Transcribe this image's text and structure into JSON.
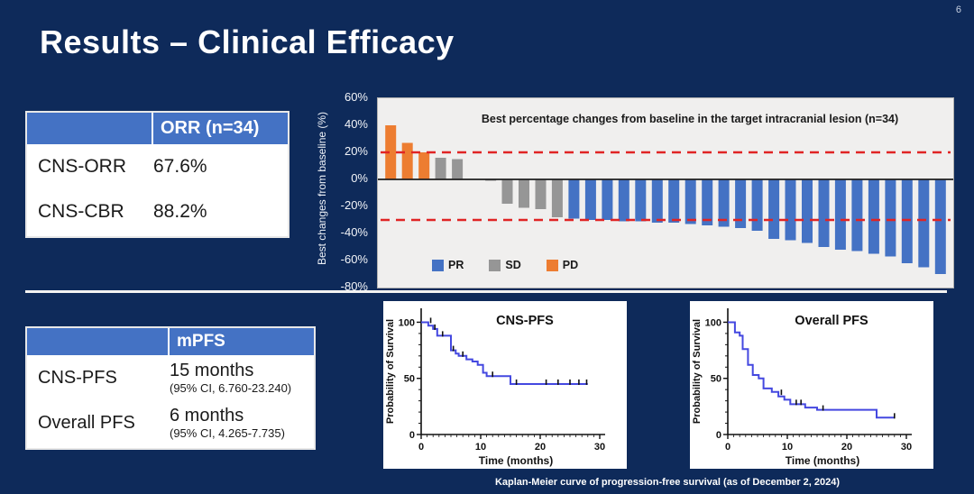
{
  "meta": {
    "page_number": "6"
  },
  "header": {
    "title": "Results – Clinical Efficacy"
  },
  "tables": {
    "orr": {
      "header_label": "ORR (n=34)",
      "rows": [
        {
          "label": "CNS-ORR",
          "value": "67.6%"
        },
        {
          "label": "CNS-CBR",
          "value": "88.2%"
        }
      ]
    },
    "mpfs": {
      "header_label": "mPFS",
      "rows": [
        {
          "label": "CNS-PFS",
          "value": "15 months",
          "ci": "(95% CI, 6.760-23.240)"
        },
        {
          "label": "Overall PFS",
          "value": "6 months",
          "ci": "(95% CI, 4.265-7.735)"
        }
      ]
    }
  },
  "caption": "Kaplan-Meier curve of progression-free survival (as of December 2, 2024)",
  "colors": {
    "background": "#0E2A5A",
    "table_header_blue": "#4472C4",
    "pr_blue": "#4472C4",
    "sd_gray": "#969696",
    "pd_orange": "#ED7D31",
    "reference_red": "#E02424",
    "km_curve_blue": "#4448E0",
    "plot_background": "#F0EFEE"
  },
  "chart_data": [
    {
      "id": "waterfall",
      "type": "bar",
      "title": "Best percentage changes from baseline in the target intracranial lesion (n=34)",
      "ylabel": "Best changes from baseline (%)",
      "ylim": [
        -80,
        60
      ],
      "yticks": [
        60,
        40,
        20,
        0,
        -20,
        -40,
        -60,
        -80
      ],
      "ytick_labels": [
        "60%",
        "40%",
        "20%",
        "0%",
        "-20%",
        "-40%",
        "-60%",
        "-80%"
      ],
      "reference_lines": [
        20,
        -30
      ],
      "grid": false,
      "legend_position": "inside-bottom-left",
      "legend": [
        {
          "label": "PR",
          "color_key": "pr_blue"
        },
        {
          "label": "SD",
          "color_key": "sd_gray"
        },
        {
          "label": "PD",
          "color_key": "pd_orange"
        }
      ],
      "values": [
        40,
        27,
        20,
        16,
        15,
        0,
        -1,
        -18,
        -21,
        -22,
        -28,
        -29,
        -30,
        -30,
        -31,
        -31,
        -32,
        -32,
        -33,
        -34,
        -35,
        -36,
        -38,
        -44,
        -45,
        -47,
        -50,
        -52,
        -53,
        -55,
        -57,
        -62,
        -65,
        -70
      ],
      "groups": [
        "PD",
        "PD",
        "PD",
        "SD",
        "SD",
        "SD",
        "SD",
        "SD",
        "SD",
        "SD",
        "SD",
        "PR",
        "PR",
        "PR",
        "PR",
        "PR",
        "PR",
        "PR",
        "PR",
        "PR",
        "PR",
        "PR",
        "PR",
        "PR",
        "PR",
        "PR",
        "PR",
        "PR",
        "PR",
        "PR",
        "PR",
        "PR",
        "PR",
        "PR"
      ]
    },
    {
      "id": "km_cns",
      "type": "line",
      "title": "CNS-PFS",
      "xlabel": "Time (months)",
      "ylabel": "Probability of Survival",
      "xlim": [
        0,
        30
      ],
      "ylim": [
        0,
        110
      ],
      "xticks": [
        0,
        10,
        20,
        30
      ],
      "yticks": [
        0,
        50,
        100
      ],
      "steps": [
        [
          0,
          100
        ],
        [
          1.2,
          100
        ],
        [
          1.2,
          97
        ],
        [
          2,
          97
        ],
        [
          2,
          94
        ],
        [
          2.7,
          94
        ],
        [
          2.7,
          88
        ],
        [
          5,
          88
        ],
        [
          5,
          75
        ],
        [
          5.8,
          75
        ],
        [
          5.8,
          72
        ],
        [
          6.3,
          72
        ],
        [
          6.3,
          70
        ],
        [
          7.6,
          70
        ],
        [
          7.6,
          67
        ],
        [
          8.6,
          67
        ],
        [
          8.6,
          65
        ],
        [
          9.5,
          65
        ],
        [
          9.5,
          62
        ],
        [
          10.4,
          62
        ],
        [
          10.4,
          55
        ],
        [
          11,
          55
        ],
        [
          11,
          52
        ],
        [
          15,
          52
        ],
        [
          15,
          45
        ],
        [
          28,
          45
        ]
      ],
      "censors": [
        [
          1.6,
          100
        ],
        [
          2.3,
          94
        ],
        [
          3.6,
          88
        ],
        [
          5.4,
          75
        ],
        [
          7,
          70
        ],
        [
          12,
          52
        ],
        [
          16,
          45
        ],
        [
          21,
          45
        ],
        [
          23,
          45
        ],
        [
          25,
          45
        ],
        [
          26.5,
          45
        ],
        [
          27.8,
          45
        ]
      ]
    },
    {
      "id": "km_overall",
      "type": "line",
      "title": "Overall PFS",
      "xlabel": "Time (months)",
      "ylabel": "Probability of Survival",
      "xlim": [
        0,
        30
      ],
      "ylim": [
        0,
        110
      ],
      "xticks": [
        0,
        10,
        20,
        30
      ],
      "yticks": [
        0,
        50,
        100
      ],
      "steps": [
        [
          0,
          100
        ],
        [
          1.2,
          100
        ],
        [
          1.2,
          91
        ],
        [
          2,
          91
        ],
        [
          2,
          88
        ],
        [
          2.5,
          88
        ],
        [
          2.5,
          76
        ],
        [
          3.4,
          76
        ],
        [
          3.4,
          62
        ],
        [
          4.2,
          62
        ],
        [
          4.2,
          53
        ],
        [
          5.2,
          53
        ],
        [
          5.2,
          50
        ],
        [
          6,
          50
        ],
        [
          6,
          41
        ],
        [
          7.4,
          41
        ],
        [
          7.4,
          38
        ],
        [
          8.5,
          38
        ],
        [
          8.5,
          34
        ],
        [
          9.5,
          34
        ],
        [
          9.5,
          31
        ],
        [
          10.5,
          31
        ],
        [
          10.5,
          27
        ],
        [
          13,
          27
        ],
        [
          13,
          24
        ],
        [
          15,
          24
        ],
        [
          15,
          22
        ],
        [
          25,
          22
        ],
        [
          25,
          15
        ],
        [
          28,
          15
        ]
      ],
      "censors": [
        [
          9,
          36
        ],
        [
          11.5,
          27
        ],
        [
          12.3,
          27
        ],
        [
          16,
          22
        ],
        [
          28,
          15
        ]
      ]
    }
  ]
}
